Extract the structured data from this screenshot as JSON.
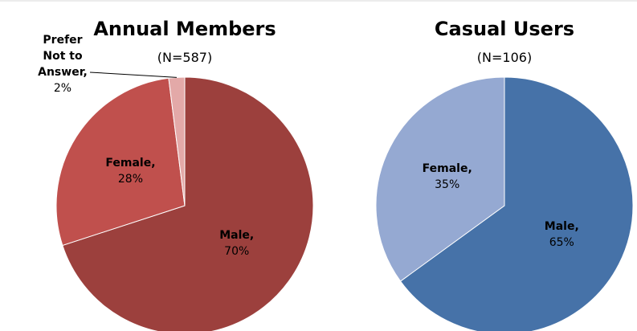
{
  "chart_data": [
    {
      "type": "pie",
      "title": "Annual Members",
      "subtitle": "(N=587)",
      "categories": [
        "Male,",
        "Female,",
        "Prefer Not to Answer,"
      ],
      "values": [
        70,
        28,
        2
      ],
      "value_labels": [
        "70%",
        "28%",
        "2%"
      ],
      "colors": [
        "#9c403d",
        "#c0504d",
        "#e3a9a8"
      ]
    },
    {
      "type": "pie",
      "title": "Casual Users",
      "subtitle": "(N=106)",
      "categories": [
        "Male,",
        "Female,"
      ],
      "values": [
        65,
        35
      ],
      "value_labels": [
        "65%",
        "35%"
      ],
      "colors": [
        "#4672a8",
        "#95a9d2"
      ]
    }
  ]
}
